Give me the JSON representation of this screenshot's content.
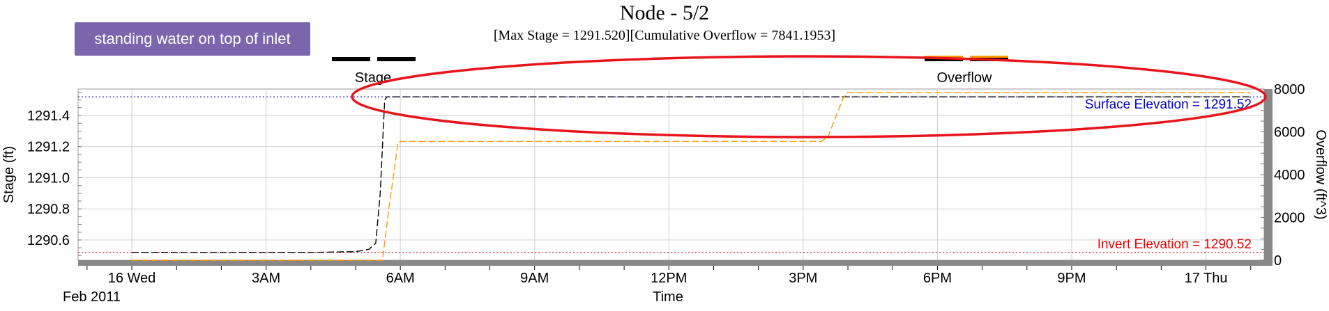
{
  "annotation": {
    "text": "standing water on top of inlet",
    "color": "#7b66ad"
  },
  "chart_data": {
    "type": "line",
    "title": "Node - 5/2",
    "subtitle": "[Max  Stage = 1291.520][Cumulative Overflow = 7841.1953]",
    "xlabel": "Time",
    "ylabel": "Stage (ft)",
    "y2label": "Overflow (ft^3)",
    "x_ticks": [
      "16 Wed",
      "3AM",
      "6AM",
      "9AM",
      "12PM",
      "3PM",
      "6PM",
      "9PM",
      "17 Thu"
    ],
    "x_tick_hours": [
      0,
      3,
      6,
      9,
      12,
      15,
      18,
      21,
      24
    ],
    "x_sublabel": "Feb 2011",
    "xlim_hours": [
      -1.2,
      25.3
    ],
    "ylim": [
      1290.47,
      1291.57
    ],
    "y_ticks": [
      1290.6,
      1290.8,
      1291.0,
      1291.2,
      1291.4
    ],
    "y2lim": [
      0,
      8000
    ],
    "y2_ticks": [
      0,
      2000,
      4000,
      6000,
      8000
    ],
    "legend": [
      {
        "name": "Stage",
        "color": "#000000",
        "position": "top-left"
      },
      {
        "name": "Overflow",
        "color": "#ff9900",
        "position": "top-right"
      }
    ],
    "reference_lines": [
      {
        "label": "Surface Elevation = 1291.52",
        "value": 1291.52,
        "axis": "left",
        "color": "#0000cc"
      },
      {
        "label": "Invert Elevation = 1290.52",
        "value": 1290.52,
        "axis": "left",
        "color": "#ee0000"
      }
    ],
    "series": [
      {
        "name": "Stage",
        "axis": "left",
        "color": "#000000",
        "dash": "dash",
        "x_hours": [
          0,
          4.0,
          5.0,
          5.3,
          5.45,
          5.55,
          5.65,
          5.7,
          25.0
        ],
        "values": [
          1290.52,
          1290.52,
          1290.525,
          1290.54,
          1290.58,
          1290.9,
          1291.5,
          1291.52,
          1291.52
        ]
      },
      {
        "name": "Overflow",
        "axis": "right",
        "color": "#ff9900",
        "dash": "dash",
        "x_hours": [
          0,
          5.6,
          5.75,
          5.95,
          6.0,
          15.4,
          15.55,
          15.9,
          16.0,
          25.0
        ],
        "values": [
          0,
          0,
          2500,
          5500,
          5550,
          5550,
          5750,
          7600,
          7841,
          7841
        ]
      }
    ],
    "grid": true
  }
}
